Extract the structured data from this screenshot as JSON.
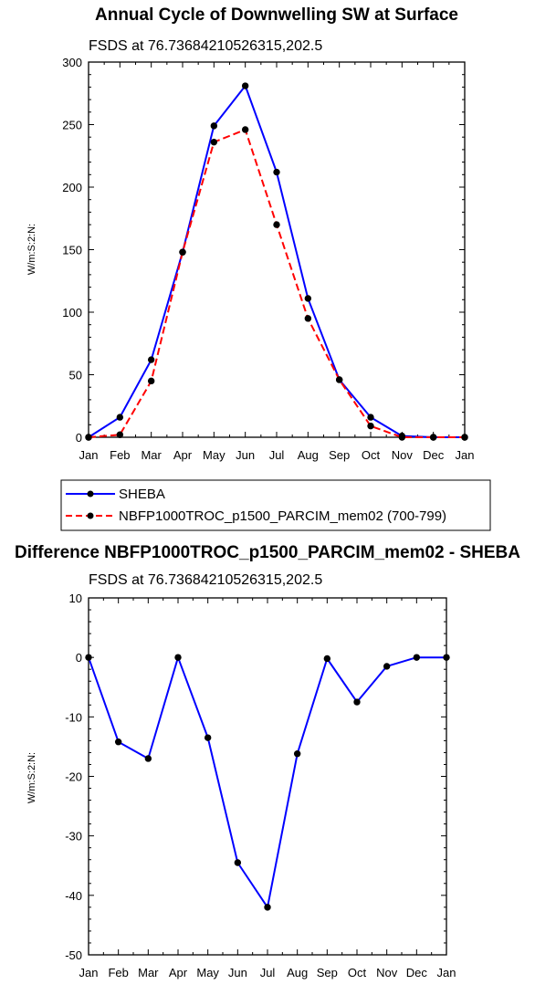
{
  "chart_data": [
    {
      "type": "line",
      "title": "Annual Cycle of Downwelling SW at Surface",
      "subtitle": "FSDS at 76.73684210526315,202.5",
      "ylabel": "W/m:S:2:N:",
      "categories": [
        "Jan",
        "Feb",
        "Mar",
        "Apr",
        "May",
        "Jun",
        "Jul",
        "Aug",
        "Sep",
        "Oct",
        "Nov",
        "Dec",
        "Jan"
      ],
      "yticks": [
        0,
        50,
        100,
        150,
        200,
        250,
        300
      ],
      "ylim": [
        0,
        300
      ],
      "grid": false,
      "legend_position": "bottom",
      "series": [
        {
          "name": "SHEBA",
          "color": "#0000ff",
          "style": "solid",
          "values": [
            0,
            16,
            62,
            148,
            249,
            281,
            212,
            111,
            46,
            16,
            1,
            0,
            0
          ]
        },
        {
          "name": "NBFP1000TROC_p1500_PARCIM_mem02 (700-799)",
          "color": "#ff0000",
          "style": "dashed",
          "values": [
            0,
            2,
            45,
            148,
            236,
            246,
            170,
            95,
            46,
            9,
            0,
            0,
            0
          ]
        }
      ]
    },
    {
      "type": "line",
      "title": "Difference NBFP1000TROC_p1500_PARCIM_mem02 - SHEBA",
      "subtitle": "FSDS at 76.73684210526315,202.5",
      "ylabel": "W/m:S:2:N:",
      "categories": [
        "Jan",
        "Feb",
        "Mar",
        "Apr",
        "May",
        "Jun",
        "Jul",
        "Aug",
        "Sep",
        "Oct",
        "Nov",
        "Dec",
        "Jan"
      ],
      "yticks": [
        10,
        0,
        -10,
        -20,
        -30,
        -40,
        -50
      ],
      "ylim": [
        -50,
        10
      ],
      "grid": false,
      "series": [
        {
          "color": "#0000ff",
          "style": "solid",
          "values": [
            0,
            -14.2,
            -17,
            0,
            -13.5,
            -34.5,
            -42,
            -16.2,
            -0.2,
            -7.5,
            -1.5,
            0,
            0
          ]
        }
      ]
    }
  ]
}
